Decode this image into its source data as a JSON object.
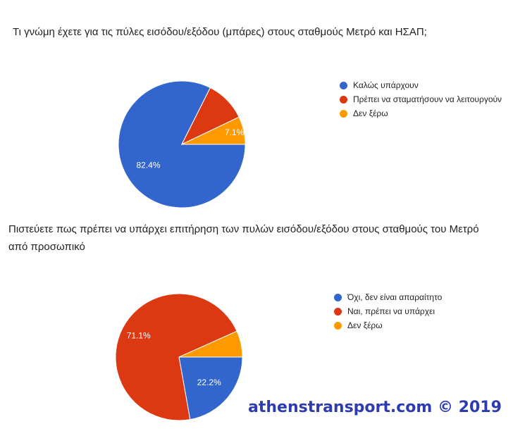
{
  "chart_data": [
    {
      "type": "pie",
      "title": "Τι γνώμη έχετε για τις πύλες εισόδου/εξόδου (μπάρες) στους σταθμούς Μετρό και ΗΣΑΠ;",
      "legend_position": "right",
      "slices": [
        {
          "label": "Καλώς υπάρχουν",
          "value": 82.4,
          "display": "82.4%",
          "color": "#3366cc"
        },
        {
          "label": "Πρέπει να σταματήσουν να λειτουργούν",
          "value": 10.5,
          "display": "",
          "color": "#dc3912"
        },
        {
          "label": "Δεν ξέρω",
          "value": 7.1,
          "display": "7.1%",
          "color": "#ff9900"
        }
      ]
    },
    {
      "type": "pie",
      "title": "Πιστεύετε πως πρέπει να υπάρχει επιτήρηση των πυλών εισόδου/εξόδου στους σταθμούς του Μετρό από προσωπικό",
      "legend_position": "right",
      "slices": [
        {
          "label": "Όχι, δεν είναι απαραίτητο",
          "value": 22.2,
          "display": "22.2%",
          "color": "#3366cc"
        },
        {
          "label": "Ναι, πρέπει να υπάρχει",
          "value": 71.1,
          "display": "71.1%",
          "color": "#dc3912"
        },
        {
          "label": "Δεν ξέρω",
          "value": 6.7,
          "display": "",
          "color": "#ff9900"
        }
      ]
    }
  ],
  "watermark": "athenstransport.com © 2019"
}
